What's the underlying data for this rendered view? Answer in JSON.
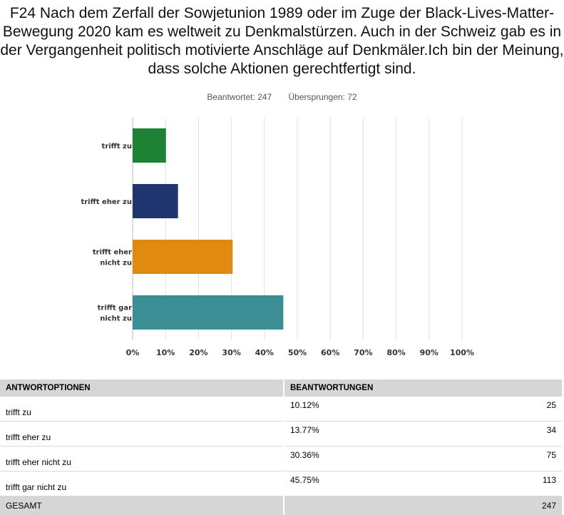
{
  "question": "F24 Nach dem Zerfall der Sowjetunion 1989 oder im Zuge der Black-Lives-Matter-Bewegung 2020 kam es weltweit zu Denkmalstürzen. Auch in der Schweiz gab es in der Vergangenheit politisch motivierte Anschläge auf Denkmäler.Ich bin der Meinung, dass solche Aktionen gerechtfertigt sind.",
  "stats": {
    "answered": "Beantwortet: 247",
    "skipped": "Übersprungen: 72"
  },
  "chart_data": {
    "type": "bar",
    "orientation": "horizontal",
    "categories": [
      "trifft zu",
      "trifft eher zu",
      "trifft eher nicht zu",
      "trifft gar nicht zu"
    ],
    "category_lines": [
      [
        "trifft zu"
      ],
      [
        "trifft eher zu"
      ],
      [
        "trifft eher",
        "nicht zu"
      ],
      [
        "trifft gar",
        "nicht zu"
      ]
    ],
    "values": [
      10.12,
      13.77,
      30.36,
      45.75
    ],
    "colors": [
      "#1e8234",
      "#1f3570",
      "#e08a12",
      "#3b8f94"
    ],
    "xlim": [
      0,
      100
    ],
    "xticks": [
      0,
      10,
      20,
      30,
      40,
      50,
      60,
      70,
      80,
      90,
      100
    ],
    "xtick_labels": [
      "0%",
      "10%",
      "20%",
      "30%",
      "40%",
      "50%",
      "60%",
      "70%",
      "80%",
      "90%",
      "100%"
    ],
    "grid": true
  },
  "table": {
    "headers": [
      "ANTWORTOPTIONEN",
      "BEANTWORTUNGEN"
    ],
    "rows": [
      {
        "option": "trifft zu",
        "percent": "10.12%",
        "count": "25"
      },
      {
        "option": "trifft eher zu",
        "percent": "13.77%",
        "count": "34"
      },
      {
        "option": "trifft eher nicht zu",
        "percent": "30.36%",
        "count": "75"
      },
      {
        "option": "trifft gar nicht zu",
        "percent": "45.75%",
        "count": "113"
      }
    ],
    "total_label": "GESAMT",
    "total_count": "247"
  }
}
